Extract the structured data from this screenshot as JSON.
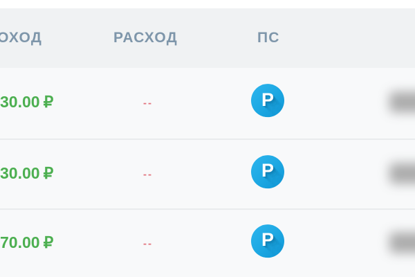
{
  "header": {
    "columns": [
      {
        "id": "income",
        "label": "ДОХОД"
      },
      {
        "id": "expense",
        "label": "РАСХОД"
      },
      {
        "id": "ps",
        "label": "ПС"
      }
    ]
  },
  "rows": [
    {
      "income": "30.00",
      "currency": "₽",
      "expense": "--",
      "ps_letter": "P",
      "ps_name": "Payeer",
      "right_value_redacted": true
    },
    {
      "income": "30.00",
      "currency": "₽",
      "expense": "--",
      "ps_letter": "P",
      "ps_name": "Payeer",
      "right_value_redacted": true
    },
    {
      "income": "70.00",
      "currency": "₽",
      "expense": "--",
      "ps_letter": "P",
      "ps_name": "Payeer",
      "right_value_redacted": true
    }
  ],
  "colors": {
    "income_green": "#4CAF50",
    "expense_red": "#E2737D",
    "payeer_blue": "#1CA7E2",
    "header_text": "#7E96AA",
    "header_bg": "#F0F2F3",
    "row_bg": "#F8F9FA",
    "background": "#FFFFFF"
  }
}
